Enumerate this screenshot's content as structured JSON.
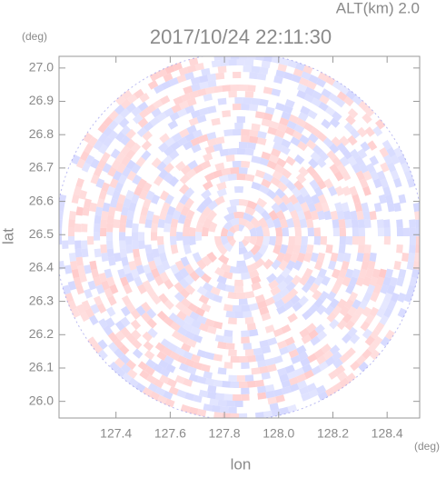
{
  "chart_data": {
    "type": "radar-ppi",
    "title": "2017/10/24 22:11:30",
    "subtitle": "ALT(km) 2.0",
    "x_label": "lon",
    "y_label": "lat",
    "x_unit": "(deg)",
    "y_unit": "(deg)",
    "xlim": [
      127.19,
      128.52
    ],
    "ylim": [
      25.95,
      27.035
    ],
    "xticks": [
      127.4,
      127.6,
      127.8,
      {
        "value": 128,
        "label": "128.0"
      },
      128.2,
      128.4
    ],
    "yticks": [
      {
        "value": 26,
        "label": "26.0"
      },
      26.1,
      26.2,
      26.3,
      26.4,
      26.5,
      26.6,
      26.7,
      26.8,
      26.9,
      {
        "value": 27,
        "label": "27.0"
      }
    ]
  }
}
